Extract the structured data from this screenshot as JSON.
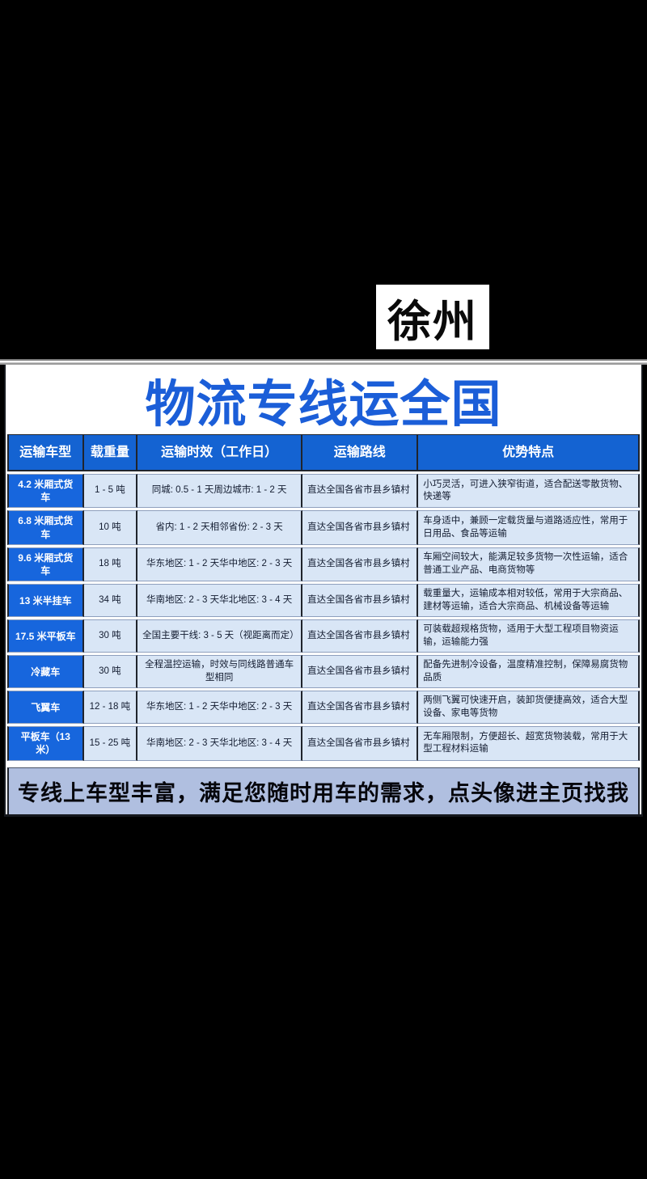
{
  "page": {
    "location_badge": "徐州",
    "title": "物流专线运全国",
    "footer_banner": "专线上车型丰富，满足您随时用车的需求，点头像进主页找我"
  },
  "colors": {
    "background": "#000000",
    "panel": "#ffffff",
    "title_blue": "#1b5ed8",
    "header_blue": "#1463d2",
    "vehicle_cell_blue": "#1766dd",
    "data_cell_blue": "#d9e6f6",
    "cell_border_dark": "#20242c",
    "footer_bar_blue": "#b0bfe0",
    "badge_bg": "#ffffff",
    "badge_text": "#0a0a0a"
  },
  "table": {
    "columns": [
      {
        "key": "vehicle",
        "label": "运输车型"
      },
      {
        "key": "capacity",
        "label": "载重量"
      },
      {
        "key": "time",
        "label": "运输时效（工作日）"
      },
      {
        "key": "route",
        "label": "运输路线"
      },
      {
        "key": "features",
        "label": "优势特点"
      }
    ],
    "rows": [
      {
        "vehicle": "4.2 米厢式货车",
        "capacity": "1 - 5 吨",
        "time": "同城: 0.5 - 1 天周边城市: 1 - 2 天",
        "route": "直达全国各省市县乡镇村",
        "features": "小巧灵活，可进入狭窄街道，适合配送零散货物、快递等"
      },
      {
        "vehicle": "6.8 米厢式货车",
        "capacity": "10 吨",
        "time": "省内: 1 - 2 天相邻省份: 2 - 3 天",
        "route": "直达全国各省市县乡镇村",
        "features": "车身适中，兼顾一定载货量与道路适应性，常用于日用品、食品等运输"
      },
      {
        "vehicle": "9.6 米厢式货车",
        "capacity": "18 吨",
        "time": "华东地区: 1 - 2 天华中地区: 2 - 3 天",
        "route": "直达全国各省市县乡镇村",
        "features": "车厢空间较大，能满足较多货物一次性运输，适合普通工业产品、电商货物等"
      },
      {
        "vehicle": "13 米半挂车",
        "capacity": "34 吨",
        "time": "华南地区: 2 - 3 天华北地区: 3 - 4 天",
        "route": "直达全国各省市县乡镇村",
        "features": "载重量大，运输成本相对较低，常用于大宗商品、建材等运输，适合大宗商品、机械设备等运输"
      },
      {
        "vehicle": "17.5 米平板车",
        "capacity": "30 吨",
        "time": "全国主要干线: 3 - 5 天（视距离而定）",
        "route": "直达全国各省市县乡镇村",
        "features": "可装载超规格货物，适用于大型工程项目物资运输，运输能力强"
      },
      {
        "vehicle": "冷藏车",
        "capacity": "30 吨",
        "time": "全程温控运输，时效与同线路普通车型相同",
        "route": "直达全国各省市县乡镇村",
        "features": "配备先进制冷设备，温度精准控制，保障易腐货物品质"
      },
      {
        "vehicle": "飞翼车",
        "capacity": "12 - 18 吨",
        "time": "华东地区: 1 - 2 天华中地区: 2 - 3 天",
        "route": "直达全国各省市县乡镇村",
        "features": "两侧飞翼可快速开启，装卸货便捷高效，适合大型设备、家电等货物"
      },
      {
        "vehicle": "平板车（13 米）",
        "capacity": "15 - 25 吨",
        "time": "华南地区: 2 - 3 天华北地区: 3 - 4 天",
        "route": "直达全国各省市县乡镇村",
        "features": "无车厢限制，方便超长、超宽货物装载，常用于大型工程材料运输"
      }
    ]
  }
}
